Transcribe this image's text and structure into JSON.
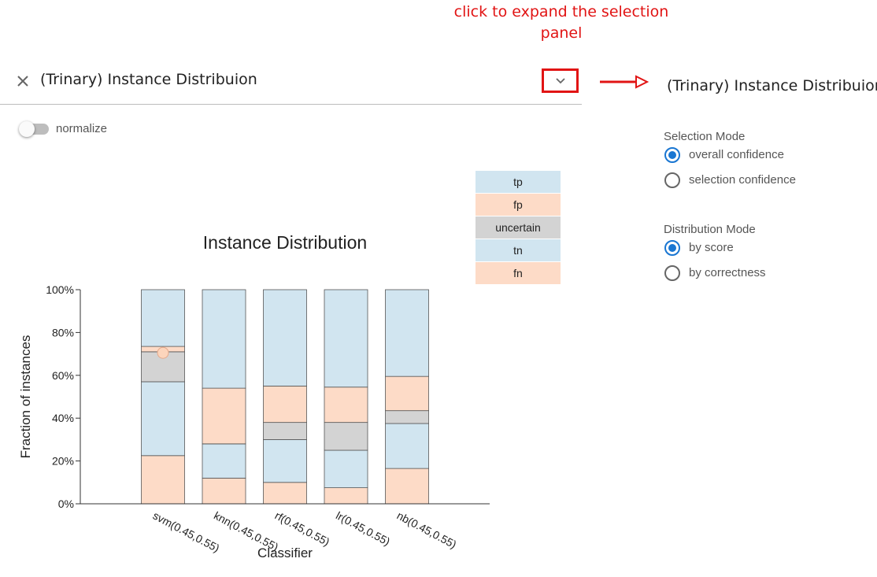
{
  "annotation": {
    "line1": "click to expand the selection",
    "line2": "panel",
    "color": "#e11414"
  },
  "header": {
    "title": "(Trinary) Instance Distribuion",
    "close_icon": "close-icon",
    "expand_icon": "chevron-down-icon"
  },
  "toggle": {
    "label": "normalize",
    "checked": false
  },
  "side_panel": {
    "title": "(Trinary) Instance Distribuion",
    "selection_mode": {
      "label": "Selection Mode",
      "options": [
        {
          "label": "overall confidence",
          "checked": true
        },
        {
          "label": "selection confidence",
          "checked": false
        }
      ]
    },
    "distribution_mode": {
      "label": "Distribution Mode",
      "options": [
        {
          "label": "by score",
          "checked": true
        },
        {
          "label": "by correctness",
          "checked": false
        }
      ]
    }
  },
  "colors": {
    "tp": "#d1e5f0",
    "fp": "#fddbc7",
    "uncertain": "#d3d3d3",
    "tn": "#d1e5f0",
    "fn": "#fddbc7",
    "accent": "#1976d2",
    "marker_fill": "#fcd5bc",
    "marker_stroke": "#e6a98a"
  },
  "chart_data": {
    "type": "bar",
    "stacked": true,
    "title": "Instance Distribution",
    "xlabel": "Classifier",
    "ylabel": "Fraction of instances",
    "ylim": [
      0,
      1
    ],
    "yticks": [
      "0%",
      "20%",
      "40%",
      "60%",
      "80%",
      "100%"
    ],
    "categories": [
      "svm(0.45,0.55)",
      "knn(0.45,0.55)",
      "rf(0.45,0.55)",
      "lr(0.45,0.55)",
      "nb(0.45,0.55)"
    ],
    "legend": [
      "tp",
      "fp",
      "uncertain",
      "tn",
      "fn"
    ],
    "legend_position": "top-right",
    "series": [
      {
        "name": "fn",
        "values": [
          0.225,
          0.12,
          0.1,
          0.075,
          0.165
        ]
      },
      {
        "name": "tn",
        "values": [
          0.345,
          0.16,
          0.2,
          0.175,
          0.21
        ]
      },
      {
        "name": "uncertain",
        "values": [
          0.14,
          0.0,
          0.08,
          0.13,
          0.06
        ]
      },
      {
        "name": "fp",
        "values": [
          0.025,
          0.26,
          0.17,
          0.165,
          0.16
        ]
      },
      {
        "name": "tp",
        "values": [
          0.265,
          0.46,
          0.45,
          0.455,
          0.405
        ]
      }
    ],
    "marker": {
      "category": "svm(0.45,0.55)",
      "value": 0.705
    }
  }
}
